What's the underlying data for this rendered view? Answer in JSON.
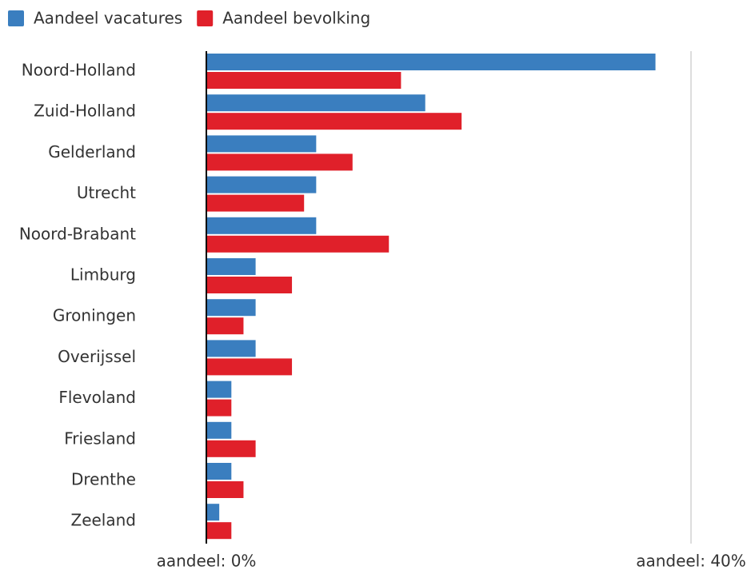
{
  "chart_data": {
    "type": "hbar",
    "categories": [
      "Noord-Holland",
      "Zuid-Holland",
      "Gelderland",
      "Utrecht",
      "Noord-Brabant",
      "Limburg",
      "Groningen",
      "Overijssel",
      "Flevoland",
      "Friesland",
      "Drenthe",
      "Zeeland"
    ],
    "series": [
      {
        "name": "Aandeel vacatures",
        "color": "#3a7ebf",
        "values": [
          37,
          18,
          9,
          9,
          9,
          4,
          4,
          4,
          2,
          2,
          2,
          1
        ]
      },
      {
        "name": "Aandeel bevolking",
        "color": "#e0202a",
        "values": [
          16,
          21,
          12,
          8,
          15,
          7,
          3,
          7,
          2,
          4,
          3,
          2
        ]
      }
    ],
    "xlim": [
      0,
      40
    ],
    "xticks": [
      {
        "value": 0,
        "label": "aandeel: 0%"
      },
      {
        "value": 40,
        "label": "aandeel: 40%"
      }
    ],
    "grid": true,
    "legend": "top-left"
  }
}
